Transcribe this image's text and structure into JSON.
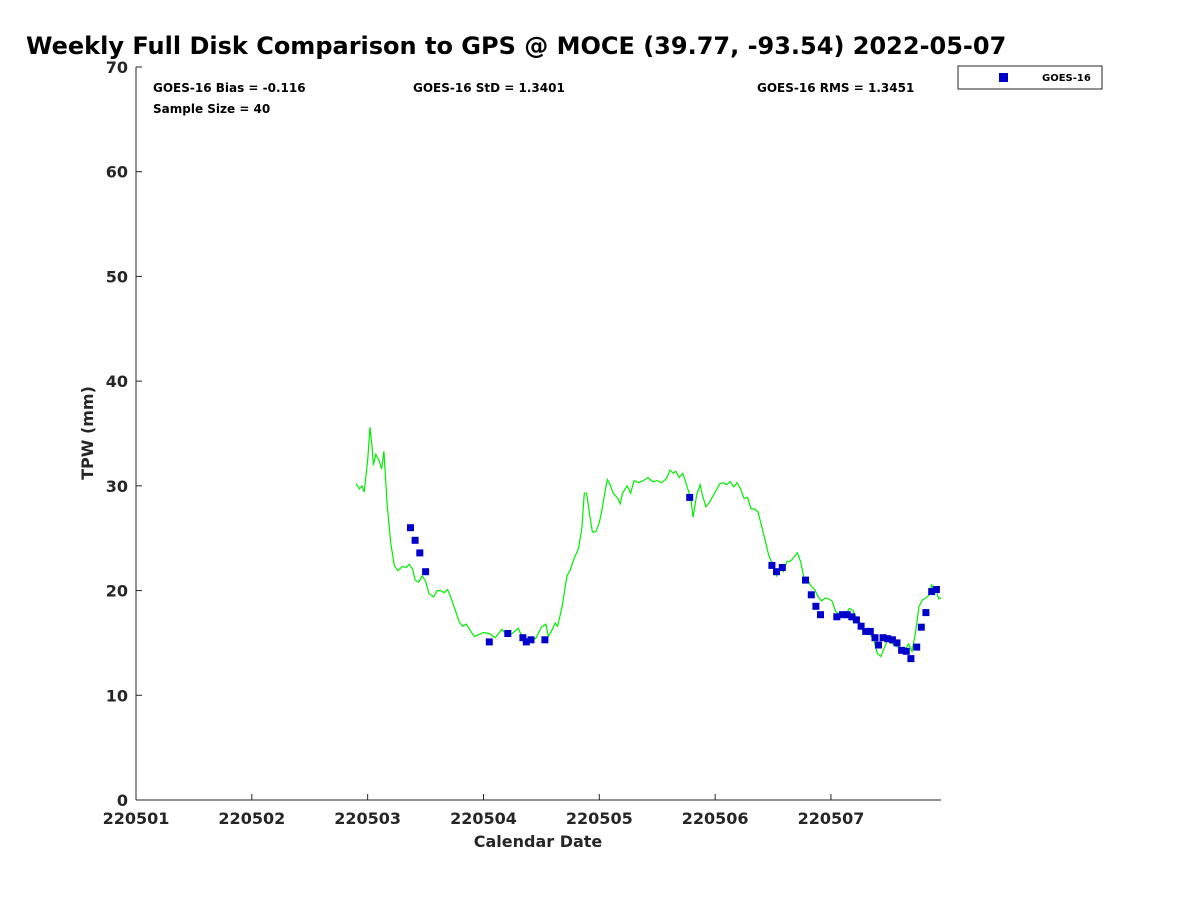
{
  "chart_data": {
    "type": "scatter",
    "title": "Weekly Full Disk Comparison to GPS @ MOCE (39.77, -93.54) 2022-05-07",
    "xlabel": "Calendar Date",
    "ylabel": "TPW (mm)",
    "xlim": [
      0,
      6.95
    ],
    "ylim": [
      0,
      70
    ],
    "x_ticks": [
      0,
      1,
      2,
      3,
      4,
      5,
      6
    ],
    "x_tick_labels": [
      "220501",
      "220502",
      "220503",
      "220504",
      "220505",
      "220506",
      "220507"
    ],
    "y_ticks": [
      0,
      10,
      20,
      30,
      40,
      50,
      60,
      70
    ],
    "y_tick_labels": [
      "0",
      "10",
      "20",
      "30",
      "40",
      "50",
      "60",
      "70"
    ],
    "stats": {
      "bias": "GOES-16 Bias = -0.116",
      "std": "GOES-16 StD = 1.3401",
      "rms": "GOES-16 RMS = 1.3451",
      "sample": "Sample Size = 40"
    },
    "legend": {
      "label": "GOES-16",
      "position": "top-right outside"
    },
    "series": [
      {
        "name": "GOES-16",
        "kind": "scatter",
        "color": "#0000cc",
        "points": [
          [
            2.37,
            26.0
          ],
          [
            2.41,
            24.8
          ],
          [
            2.45,
            23.6
          ],
          [
            2.5,
            21.8
          ],
          [
            3.05,
            15.1
          ],
          [
            3.21,
            15.9
          ],
          [
            3.34,
            15.5
          ],
          [
            3.37,
            15.1
          ],
          [
            3.41,
            15.3
          ],
          [
            3.53,
            15.3
          ],
          [
            4.78,
            28.9
          ],
          [
            5.49,
            22.4
          ],
          [
            5.53,
            21.8
          ],
          [
            5.58,
            22.2
          ],
          [
            5.78,
            21.0
          ],
          [
            5.83,
            19.6
          ],
          [
            5.87,
            18.5
          ],
          [
            5.91,
            17.7
          ],
          [
            6.05,
            17.5
          ],
          [
            6.1,
            17.7
          ],
          [
            6.14,
            17.7
          ],
          [
            6.18,
            17.5
          ],
          [
            6.22,
            17.2
          ],
          [
            6.26,
            16.6
          ],
          [
            6.3,
            16.1
          ],
          [
            6.34,
            16.1
          ],
          [
            6.38,
            15.5
          ],
          [
            6.41,
            14.8
          ],
          [
            6.45,
            15.5
          ],
          [
            6.49,
            15.4
          ],
          [
            6.53,
            15.3
          ],
          [
            6.57,
            15.0
          ],
          [
            6.61,
            14.3
          ],
          [
            6.65,
            14.2
          ],
          [
            6.69,
            13.5
          ],
          [
            6.74,
            14.6
          ],
          [
            6.78,
            16.5
          ],
          [
            6.82,
            17.9
          ],
          [
            6.87,
            19.9
          ],
          [
            6.91,
            20.1
          ]
        ]
      },
      {
        "name": "GPS",
        "kind": "line",
        "color": "#00ee00",
        "points": [
          [
            1.9,
            30.2
          ],
          [
            1.93,
            29.7
          ],
          [
            1.95,
            30.0
          ],
          [
            1.97,
            29.4
          ],
          [
            2.0,
            32.5
          ],
          [
            2.02,
            35.6
          ],
          [
            2.04,
            33.5
          ],
          [
            2.05,
            32.0
          ],
          [
            2.07,
            33.0
          ],
          [
            2.1,
            32.4
          ],
          [
            2.12,
            31.6
          ],
          [
            2.14,
            33.3
          ],
          [
            2.17,
            28.0
          ],
          [
            2.2,
            24.5
          ],
          [
            2.23,
            22.4
          ],
          [
            2.26,
            21.9
          ],
          [
            2.3,
            22.3
          ],
          [
            2.33,
            22.2
          ],
          [
            2.36,
            22.5
          ],
          [
            2.39,
            22.0
          ],
          [
            2.41,
            21.0
          ],
          [
            2.44,
            20.8
          ],
          [
            2.47,
            21.4
          ],
          [
            2.5,
            20.9
          ],
          [
            2.53,
            19.7
          ],
          [
            2.57,
            19.4
          ],
          [
            2.6,
            20.0
          ],
          [
            2.63,
            20.0
          ],
          [
            2.66,
            19.8
          ],
          [
            2.69,
            20.1
          ],
          [
            2.72,
            19.3
          ],
          [
            2.76,
            18.0
          ],
          [
            2.79,
            17.0
          ],
          [
            2.82,
            16.6
          ],
          [
            2.85,
            16.8
          ],
          [
            2.88,
            16.3
          ],
          [
            2.92,
            15.6
          ],
          [
            2.96,
            15.8
          ],
          [
            3.0,
            16.0
          ],
          [
            3.05,
            15.9
          ],
          [
            3.1,
            15.5
          ],
          [
            3.16,
            16.3
          ],
          [
            3.2,
            15.8
          ],
          [
            3.25,
            15.9
          ],
          [
            3.3,
            16.4
          ],
          [
            3.35,
            15.2
          ],
          [
            3.4,
            15.5
          ],
          [
            3.45,
            15.4
          ],
          [
            3.5,
            16.5
          ],
          [
            3.54,
            16.8
          ],
          [
            3.56,
            15.6
          ],
          [
            3.58,
            16.0
          ],
          [
            3.62,
            16.9
          ],
          [
            3.64,
            16.6
          ],
          [
            3.68,
            18.5
          ],
          [
            3.72,
            21.4
          ],
          [
            3.75,
            22.0
          ],
          [
            3.78,
            23.0
          ],
          [
            3.82,
            24.0
          ],
          [
            3.85,
            26.0
          ],
          [
            3.87,
            29.3
          ],
          [
            3.89,
            29.3
          ],
          [
            3.92,
            27.0
          ],
          [
            3.94,
            25.6
          ],
          [
            3.97,
            25.6
          ],
          [
            4.0,
            26.5
          ],
          [
            4.02,
            27.5
          ],
          [
            4.05,
            29.5
          ],
          [
            4.07,
            30.6
          ],
          [
            4.09,
            30.2
          ],
          [
            4.12,
            29.3
          ],
          [
            4.16,
            28.8
          ],
          [
            4.18,
            28.3
          ],
          [
            4.2,
            29.3
          ],
          [
            4.24,
            30.0
          ],
          [
            4.27,
            29.3
          ],
          [
            4.3,
            30.5
          ],
          [
            4.34,
            30.3
          ],
          [
            4.38,
            30.5
          ],
          [
            4.42,
            30.8
          ],
          [
            4.46,
            30.4
          ],
          [
            4.5,
            30.5
          ],
          [
            4.54,
            30.3
          ],
          [
            4.58,
            30.7
          ],
          [
            4.61,
            31.5
          ],
          [
            4.64,
            31.2
          ],
          [
            4.66,
            31.4
          ],
          [
            4.69,
            30.8
          ],
          [
            4.72,
            31.2
          ],
          [
            4.75,
            30.2
          ],
          [
            4.77,
            29.5
          ],
          [
            4.79,
            28.8
          ],
          [
            4.81,
            27.0
          ],
          [
            4.84,
            29.1
          ],
          [
            4.87,
            30.1
          ],
          [
            4.89,
            29.1
          ],
          [
            4.92,
            28.0
          ],
          [
            4.95,
            28.4
          ],
          [
            4.98,
            29.0
          ],
          [
            5.01,
            29.6
          ],
          [
            5.04,
            30.2
          ],
          [
            5.07,
            30.3
          ],
          [
            5.1,
            30.1
          ],
          [
            5.13,
            30.4
          ],
          [
            5.16,
            29.9
          ],
          [
            5.19,
            30.3
          ],
          [
            5.22,
            29.7
          ],
          [
            5.25,
            28.8
          ],
          [
            5.28,
            28.9
          ],
          [
            5.31,
            27.8
          ],
          [
            5.34,
            27.8
          ],
          [
            5.37,
            27.5
          ],
          [
            5.4,
            26.2
          ],
          [
            5.43,
            24.9
          ],
          [
            5.46,
            23.5
          ],
          [
            5.5,
            22.3
          ],
          [
            5.53,
            21.4
          ],
          [
            5.56,
            22.2
          ],
          [
            5.59,
            21.8
          ],
          [
            5.62,
            22.8
          ],
          [
            5.65,
            22.8
          ],
          [
            5.68,
            23.2
          ],
          [
            5.71,
            23.6
          ],
          [
            5.74,
            22.7
          ],
          [
            5.77,
            21.0
          ],
          [
            5.8,
            21.0
          ],
          [
            5.83,
            20.4
          ],
          [
            5.86,
            20.1
          ],
          [
            5.89,
            19.4
          ],
          [
            5.92,
            19.0
          ],
          [
            5.95,
            19.3
          ],
          [
            5.98,
            19.2
          ],
          [
            6.01,
            19.0
          ],
          [
            6.04,
            18.0
          ],
          [
            6.07,
            17.8
          ],
          [
            6.1,
            17.9
          ],
          [
            6.13,
            17.8
          ],
          [
            6.16,
            18.3
          ],
          [
            6.19,
            18.1
          ],
          [
            6.22,
            17.4
          ],
          [
            6.25,
            16.9
          ],
          [
            6.28,
            16.0
          ],
          [
            6.31,
            16.2
          ],
          [
            6.34,
            15.8
          ],
          [
            6.37,
            15.3
          ],
          [
            6.4,
            14.0
          ],
          [
            6.43,
            13.7
          ],
          [
            6.46,
            14.5
          ],
          [
            6.49,
            15.3
          ],
          [
            6.52,
            15.0
          ],
          [
            6.55,
            14.8
          ],
          [
            6.58,
            14.6
          ],
          [
            6.61,
            14.5
          ],
          [
            6.64,
            14.4
          ],
          [
            6.67,
            14.9
          ],
          [
            6.7,
            14.2
          ],
          [
            6.73,
            16.0
          ],
          [
            6.76,
            18.5
          ],
          [
            6.79,
            19.1
          ],
          [
            6.82,
            19.3
          ],
          [
            6.85,
            19.6
          ],
          [
            6.87,
            20.6
          ],
          [
            6.89,
            19.8
          ],
          [
            6.91,
            20.0
          ],
          [
            6.93,
            19.2
          ],
          [
            6.95,
            19.3
          ]
        ]
      }
    ]
  }
}
